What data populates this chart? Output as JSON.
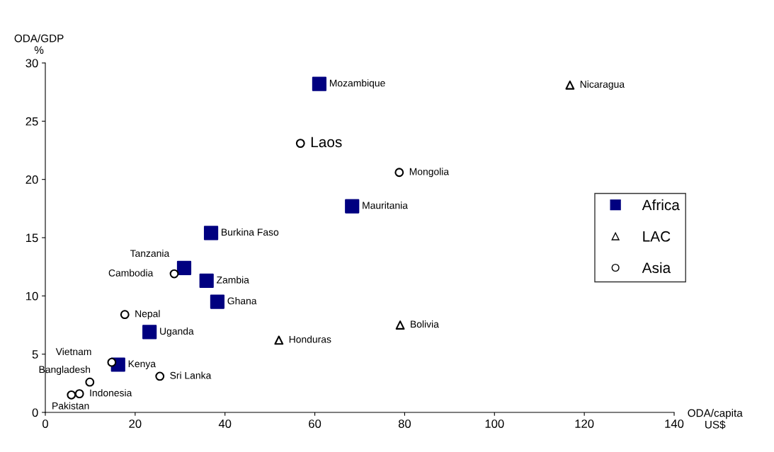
{
  "chart_data": {
    "type": "scatter",
    "xlabel": "ODA/capita\nUS$",
    "ylabel": "ODA/GDP\n%",
    "xlim": [
      0,
      140
    ],
    "ylim": [
      0,
      30
    ],
    "xticks": [
      0,
      20,
      40,
      60,
      80,
      100,
      120,
      140
    ],
    "yticks": [
      0,
      5,
      10,
      15,
      20,
      25,
      30
    ],
    "grid": false,
    "legend": "right",
    "series": [
      {
        "name": "Africa",
        "color": "#000080",
        "marker": "square",
        "x": [
          61.0,
          68.3,
          36.9,
          30.9,
          35.9,
          38.3,
          23.2,
          16.2
        ],
        "values": [
          28.2,
          17.7,
          15.4,
          12.4,
          11.3,
          9.5,
          6.9,
          4.1
        ]
      },
      {
        "name": "LAC",
        "color": "#000000",
        "marker": "triangle",
        "x": [
          116.8,
          79.0,
          52.0
        ],
        "values": [
          28.1,
          7.5,
          6.2
        ]
      },
      {
        "name": "Asia",
        "color": "#000000",
        "marker": "circle",
        "x": [
          56.8,
          78.8,
          28.7,
          17.7,
          14.8,
          9.9,
          25.5,
          5.8,
          7.6
        ],
        "values": [
          23.1,
          20.6,
          11.9,
          8.4,
          4.3,
          2.6,
          3.1,
          1.5,
          1.6
        ]
      }
    ],
    "annotations": [
      {
        "text": "Mozambique",
        "x": 61.0,
        "y": 28.2
      },
      {
        "text": "Mauritania",
        "x": 68.3,
        "y": 17.7
      },
      {
        "text": "Burkina Faso",
        "x": 36.9,
        "y": 15.4
      },
      {
        "text": "Tanzania",
        "x": 30.9,
        "y": 12.4
      },
      {
        "text": "Zambia",
        "x": 35.9,
        "y": 11.3
      },
      {
        "text": "Ghana",
        "x": 38.3,
        "y": 9.5
      },
      {
        "text": "Uganda",
        "x": 23.2,
        "y": 6.9
      },
      {
        "text": "Kenya",
        "x": 16.2,
        "y": 4.1
      },
      {
        "text": "Nicaragua",
        "x": 116.8,
        "y": 28.1
      },
      {
        "text": "Bolivia",
        "x": 79.0,
        "y": 7.5
      },
      {
        "text": "Honduras",
        "x": 52.0,
        "y": 6.2
      },
      {
        "text": "Laos",
        "x": 56.8,
        "y": 23.1
      },
      {
        "text": "Mongolia",
        "x": 78.8,
        "y": 20.6
      },
      {
        "text": "Cambodia",
        "x": 28.7,
        "y": 11.9
      },
      {
        "text": "Nepal",
        "x": 17.7,
        "y": 8.4
      },
      {
        "text": "Vietnam",
        "x": 14.8,
        "y": 4.3
      },
      {
        "text": "Bangladesh",
        "x": 9.9,
        "y": 2.6
      },
      {
        "text": "Sri Lanka",
        "x": 25.5,
        "y": 3.1
      },
      {
        "text": "Pakistan",
        "x": 5.8,
        "y": 1.5
      },
      {
        "text": "Indonesia",
        "x": 7.6,
        "y": 1.6
      }
    ]
  }
}
